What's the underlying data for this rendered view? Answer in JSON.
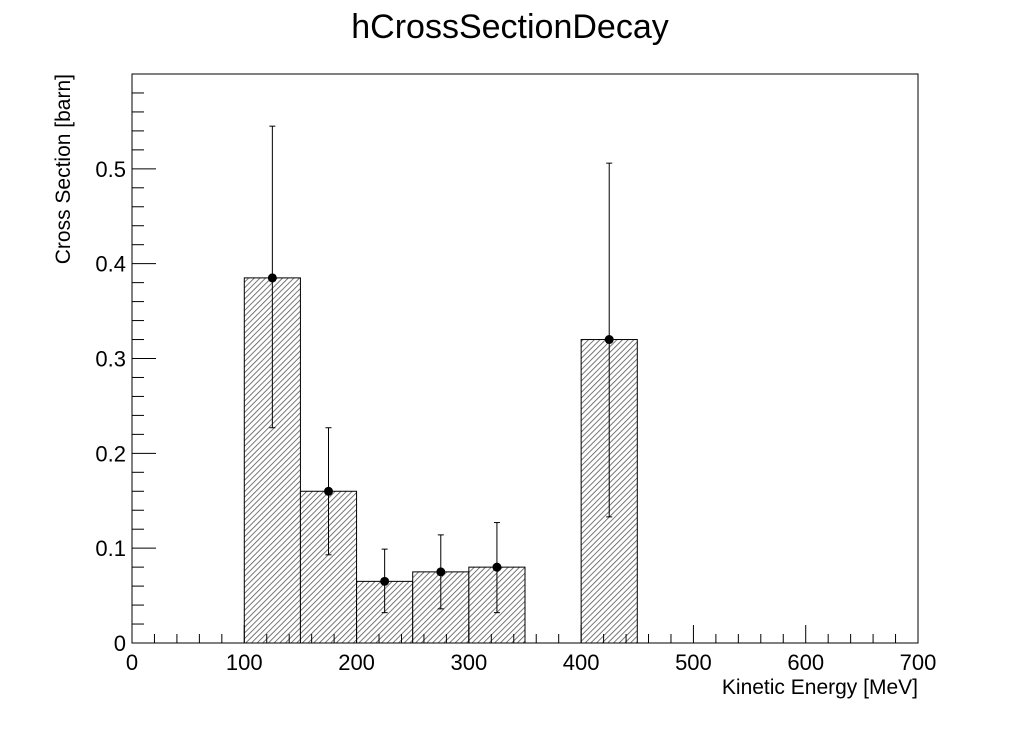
{
  "chart_data": {
    "type": "bar",
    "title": "hCrossSectionDecay",
    "xlabel": "Kinetic Energy [MeV]",
    "ylabel": "Cross Section [barn]",
    "xlim": [
      0,
      700
    ],
    "ylim": [
      0,
      0.6
    ],
    "x_ticks": [
      0,
      100,
      200,
      300,
      400,
      500,
      600,
      700
    ],
    "y_ticks": [
      0,
      0.1,
      0.2,
      0.3,
      0.4,
      0.5
    ],
    "x_tick_labels": [
      "0",
      "100",
      "200",
      "300",
      "400",
      "500",
      "600",
      "700"
    ],
    "y_tick_labels": [
      "0",
      "0.1",
      "0.2",
      "0.3",
      "0.4",
      "0.5"
    ],
    "grid": false,
    "bin_width": 50,
    "bins": [
      {
        "x_low": 100,
        "x_high": 150,
        "center": 125,
        "value": 0.385,
        "err_low": 0.227,
        "err_high": 0.545
      },
      {
        "x_low": 150,
        "x_high": 200,
        "center": 175,
        "value": 0.16,
        "err_low": 0.093,
        "err_high": 0.227
      },
      {
        "x_low": 200,
        "x_high": 250,
        "center": 225,
        "value": 0.065,
        "err_low": 0.032,
        "err_high": 0.099
      },
      {
        "x_low": 250,
        "x_high": 300,
        "center": 275,
        "value": 0.075,
        "err_low": 0.036,
        "err_high": 0.114
      },
      {
        "x_low": 300,
        "x_high": 350,
        "center": 325,
        "value": 0.08,
        "err_low": 0.032,
        "err_high": 0.127
      },
      {
        "x_low": 400,
        "x_high": 450,
        "center": 425,
        "value": 0.32,
        "err_low": 0.133,
        "err_high": 0.506
      }
    ],
    "fill_style": "hatched",
    "colors": {
      "line": "#000000",
      "hatch": "#555555",
      "background": "#ffffff"
    }
  }
}
